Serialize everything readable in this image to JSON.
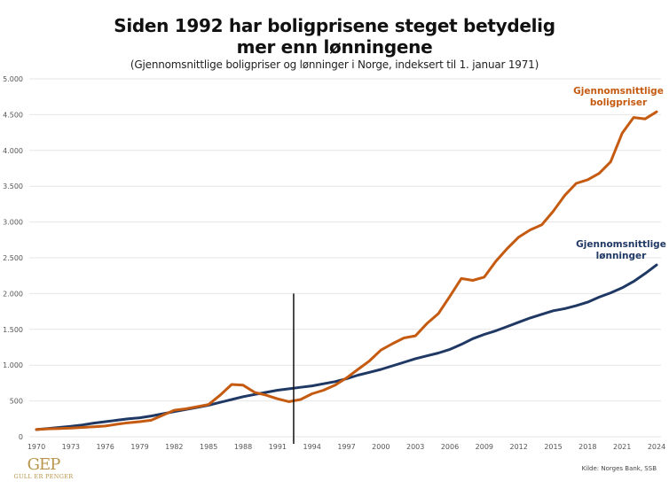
{
  "header": {
    "title_line1": "Siden 1992 har boligprisene steget betydelig",
    "title_line2": "mer enn lønningene",
    "subtitle": "(Gjennomsnittlige boligpriser og lønninger i Norge, indeksert til 1. januar 1971)"
  },
  "footer": {
    "logo_mark": "GEP",
    "logo_name": "GULL ER PENGER",
    "source": "Kilde: Norges Bank, SSB"
  },
  "chart_data": {
    "type": "line",
    "title": "Siden 1992 har boligprisene steget betydelig mer enn lønningene",
    "subtitle": "(Gjennomsnittlige boligpriser og lønninger i Norge, indeksert til 1. januar 1971)",
    "xlabel": "",
    "ylabel": "",
    "xlim": [
      1970,
      2024
    ],
    "ylim": [
      0,
      5000
    ],
    "grid": true,
    "x_ticks": [
      1970,
      1973,
      1976,
      1979,
      1982,
      1985,
      1988,
      1991,
      1994,
      1997,
      2000,
      2003,
      2006,
      2009,
      2012,
      2015,
      2018,
      2021,
      2024
    ],
    "y_ticks": [
      0,
      500,
      1000,
      1500,
      2000,
      2500,
      3000,
      3500,
      4000,
      4500,
      5000
    ],
    "y_tick_labels": [
      "0",
      "500",
      "1.000",
      "1.500",
      "2.000",
      "2.500",
      "3.000",
      "3.500",
      "4.000",
      "4.500",
      "5.000"
    ],
    "x": [
      1970,
      1971,
      1972,
      1973,
      1974,
      1975,
      1976,
      1977,
      1978,
      1979,
      1980,
      1981,
      1982,
      1983,
      1984,
      1985,
      1986,
      1987,
      1988,
      1989,
      1990,
      1991,
      1992,
      1993,
      1994,
      1995,
      1996,
      1997,
      1998,
      1999,
      2000,
      2001,
      2002,
      2003,
      2004,
      2005,
      2006,
      2007,
      2008,
      2009,
      2010,
      2011,
      2012,
      2013,
      2014,
      2015,
      2016,
      2017,
      2018,
      2019,
      2020,
      2021,
      2022,
      2023,
      2024
    ],
    "series": [
      {
        "name": "Gjennomsnittlige boligpriser",
        "label_lines": [
          "Gjennomsnittlige",
          "boligpriser"
        ],
        "color": "#C55A11",
        "values": [
          100,
          110,
          115,
          120,
          130,
          140,
          150,
          175,
          195,
          210,
          230,
          300,
          370,
          390,
          420,
          450,
          580,
          730,
          720,
          620,
          580,
          530,
          490,
          520,
          600,
          650,
          720,
          820,
          940,
          1060,
          1210,
          1300,
          1380,
          1410,
          1580,
          1720,
          1960,
          2210,
          2185,
          2230,
          2450,
          2630,
          2790,
          2890,
          2960,
          3150,
          3370,
          3540,
          3590,
          3680,
          3840,
          4240,
          4460,
          4440,
          4540
        ]
      },
      {
        "name": "Gjennomsnittlige lønninger",
        "label_lines": [
          "Gjennomsnittlige",
          "lønninger"
        ],
        "color": "#1F3864",
        "values": [
          100,
          115,
          130,
          145,
          165,
          190,
          210,
          230,
          250,
          265,
          290,
          320,
          350,
          380,
          410,
          440,
          480,
          520,
          560,
          590,
          620,
          650,
          670,
          690,
          710,
          740,
          770,
          810,
          860,
          900,
          940,
          990,
          1040,
          1090,
          1130,
          1170,
          1220,
          1290,
          1370,
          1430,
          1480,
          1540,
          1600,
          1660,
          1710,
          1760,
          1790,
          1830,
          1880,
          1950,
          2010,
          2080,
          2170,
          2280,
          2400
        ]
      }
    ],
    "annotations": [
      {
        "type": "vertical-line",
        "x": 1992.4,
        "y_range": [
          0,
          2000
        ],
        "color": "#111111"
      }
    ],
    "legend": "inline-right"
  }
}
